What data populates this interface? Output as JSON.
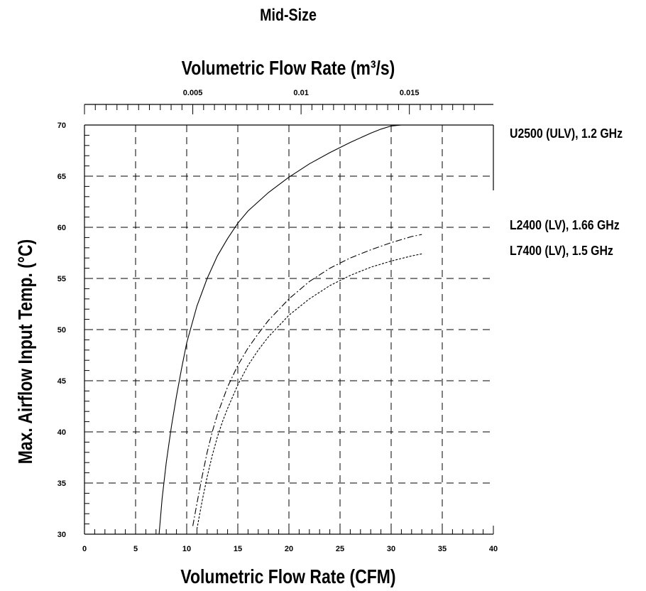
{
  "chart_data": {
    "type": "line",
    "title": "Mid-Size",
    "xlabel": "Volumetric Flow Rate (CFM)",
    "x2label": "Volumetric Flow Rate (m³/s)",
    "ylabel": "Max. Airflow Input Temp. (°C)",
    "xlim": [
      0,
      40
    ],
    "ylim": [
      30,
      70
    ],
    "x_ticks": [
      0,
      5,
      10,
      15,
      20,
      25,
      30,
      35,
      40
    ],
    "y_ticks": [
      30,
      35,
      40,
      45,
      50,
      55,
      60,
      65,
      70
    ],
    "x2_ticks": [
      "0.005",
      "0.01",
      "0.015"
    ],
    "grid": true,
    "legend_position": "right",
    "series": [
      {
        "name": "U2500 (ULV), 1.2 GHz",
        "style": "solid",
        "x": [
          7.3,
          7.6,
          8.0,
          8.5,
          9.0,
          9.5,
          10.0,
          11.0,
          12.0,
          13.0,
          14.0,
          15.0,
          16.0,
          18.0,
          20.0,
          22.0,
          24.0,
          26.0,
          28.0,
          29.0,
          30.0,
          31.0,
          32.0,
          33.0
        ],
        "y": [
          30.0,
          33.5,
          37.0,
          40.5,
          43.5,
          46.2,
          48.7,
          52.3,
          55.0,
          57.2,
          58.9,
          60.4,
          61.6,
          63.4,
          64.9,
          66.2,
          67.3,
          68.3,
          69.2,
          69.6,
          69.9,
          70.0,
          70.0,
          70.0
        ]
      },
      {
        "name": "L2400 (LV), 1.66 GHz",
        "style": "dash-dot",
        "x": [
          10.6,
          11.0,
          11.5,
          12.0,
          12.5,
          13.0,
          14.0,
          15.0,
          16.0,
          17.0,
          18.0,
          20.0,
          22.0,
          24.0,
          26.0,
          28.0,
          30.0,
          32.0,
          33.0
        ],
        "y": [
          30.8,
          33.0,
          35.6,
          38.0,
          40.0,
          41.7,
          44.4,
          46.5,
          48.2,
          49.6,
          50.9,
          53.0,
          54.7,
          56.0,
          57.0,
          57.8,
          58.5,
          59.1,
          59.3
        ]
      },
      {
        "name": "L7400 (LV), 1.5 GHz",
        "style": "dotted",
        "x": [
          11.0,
          11.5,
          12.0,
          12.5,
          13.0,
          13.5,
          14.0,
          15.0,
          16.0,
          17.0,
          18.0,
          20.0,
          22.0,
          24.0,
          26.0,
          28.0,
          30.0,
          32.0,
          33.0
        ],
        "y": [
          30.5,
          33.2,
          35.6,
          37.7,
          39.5,
          41.0,
          42.3,
          44.6,
          46.5,
          48.0,
          49.3,
          51.4,
          53.0,
          54.3,
          55.3,
          56.1,
          56.7,
          57.2,
          57.4
        ]
      }
    ]
  }
}
